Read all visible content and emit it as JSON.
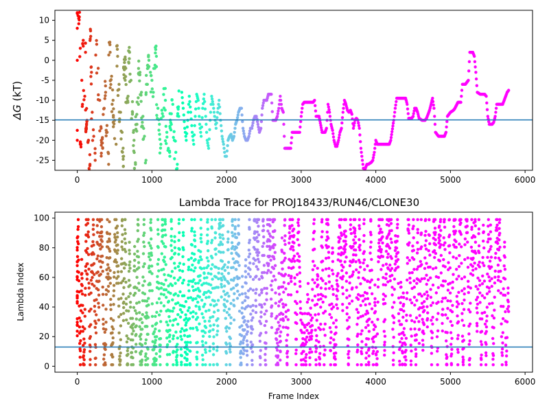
{
  "chart_data": [
    {
      "type": "scatter",
      "title": "",
      "xlabel": "",
      "ylabel": "ΔG (kT)",
      "xlim": [
        -300,
        6100
      ],
      "ylim": [
        -27.5,
        12.5
      ],
      "xticks": [
        0,
        1000,
        2000,
        3000,
        4000,
        5000,
        6000
      ],
      "yticks": [
        -25,
        -20,
        -15,
        -10,
        -5,
        0,
        5,
        10
      ],
      "grid": false,
      "hline": -14.9,
      "hline_color": "#1f77b4",
      "colormap": "rainbow (red at frame 0 → violet at high frames)",
      "trace": [
        [
          0,
          8
        ],
        [
          0,
          0
        ],
        [
          0,
          -17.5
        ],
        [
          0,
          -20
        ],
        [
          30,
          12
        ],
        [
          40,
          3
        ],
        [
          50,
          -21
        ],
        [
          60,
          -5
        ],
        [
          70,
          -11
        ],
        [
          80,
          5
        ],
        [
          100,
          -9
        ],
        [
          110,
          2
        ],
        [
          130,
          -15
        ],
        [
          150,
          -20
        ],
        [
          170,
          -26
        ],
        [
          180,
          6
        ],
        [
          190,
          -3
        ],
        [
          200,
          -13
        ],
        [
          220,
          -19
        ],
        [
          240,
          -25
        ],
        [
          260,
          4
        ],
        [
          280,
          -2
        ],
        [
          300,
          -10
        ],
        [
          320,
          -17
        ],
        [
          340,
          -22
        ],
        [
          360,
          -12
        ],
        [
          380,
          -8
        ],
        [
          400,
          -18
        ],
        [
          420,
          -26
        ],
        [
          440,
          2
        ],
        [
          460,
          -4
        ],
        [
          480,
          -10
        ],
        [
          500,
          -15
        ],
        [
          520,
          -21
        ],
        [
          540,
          1
        ],
        [
          560,
          -6
        ],
        [
          580,
          -13
        ],
        [
          600,
          -18
        ],
        [
          620,
          -24
        ],
        [
          650,
          -2
        ],
        [
          680,
          -9
        ],
        [
          700,
          2
        ],
        [
          720,
          -5
        ],
        [
          740,
          -13
        ],
        [
          760,
          -20
        ],
        [
          780,
          -26
        ],
        [
          800,
          -16
        ],
        [
          820,
          -11
        ],
        [
          840,
          -3
        ],
        [
          860,
          -8
        ],
        [
          880,
          -14
        ],
        [
          900,
          -19
        ],
        [
          920,
          -25
        ],
        [
          940,
          -6
        ],
        [
          960,
          0
        ],
        [
          980,
          -3
        ],
        [
          1000,
          -5
        ],
        [
          1020,
          -8
        ],
        [
          1040,
          -2
        ],
        [
          1060,
          1
        ],
        [
          1080,
          -12
        ],
        [
          1100,
          -16
        ],
        [
          1120,
          -21
        ],
        [
          1150,
          -14
        ],
        [
          1180,
          -10
        ],
        [
          1200,
          -18
        ],
        [
          1220,
          -22
        ],
        [
          1240,
          -24
        ],
        [
          1260,
          -16
        ],
        [
          1280,
          -11
        ],
        [
          1300,
          -20
        ],
        [
          1320,
          -23
        ],
        [
          1340,
          -26
        ],
        [
          1360,
          -14
        ],
        [
          1400,
          -8
        ],
        [
          1420,
          -12
        ],
        [
          1440,
          -17
        ],
        [
          1460,
          -20
        ],
        [
          1480,
          -15
        ],
        [
          1500,
          -9
        ],
        [
          1520,
          -13
        ],
        [
          1540,
          -18
        ],
        [
          1560,
          -21
        ],
        [
          1580,
          -14
        ],
        [
          1600,
          -8.5
        ],
        [
          1620,
          -10
        ],
        [
          1640,
          -16
        ],
        [
          1660,
          -19
        ],
        [
          1680,
          -12
        ],
        [
          1700,
          -8.5
        ],
        [
          1720,
          -14
        ],
        [
          1740,
          -20
        ],
        [
          1760,
          -22
        ],
        [
          1780,
          -15
        ],
        [
          1800,
          -9
        ],
        [
          1820,
          -11
        ],
        [
          1840,
          -14
        ],
        [
          1860,
          -17
        ],
        [
          1880,
          -13
        ],
        [
          1900,
          -10
        ],
        [
          1920,
          -15
        ],
        [
          1940,
          -19
        ],
        [
          1960,
          -21
        ],
        [
          1980,
          -24
        ],
        [
          2000,
          -24
        ],
        [
          2020,
          -20
        ],
        [
          2040,
          -19
        ],
        [
          2060,
          -18.5
        ],
        [
          2080,
          -20
        ],
        [
          2100,
          -19
        ],
        [
          2120,
          -16
        ],
        [
          2140,
          -15
        ],
        [
          2160,
          -13
        ],
        [
          2180,
          -12
        ],
        [
          2200,
          -12
        ],
        [
          2220,
          -17
        ],
        [
          2240,
          -19
        ],
        [
          2260,
          -20
        ],
        [
          2280,
          -20
        ],
        [
          2300,
          -19
        ],
        [
          2320,
          -17
        ],
        [
          2340,
          -17
        ],
        [
          2360,
          -15
        ],
        [
          2380,
          -14
        ],
        [
          2400,
          -14
        ],
        [
          2420,
          -16
        ],
        [
          2440,
          -18
        ],
        [
          2460,
          -17
        ],
        [
          2480,
          -12
        ],
        [
          2500,
          -10
        ],
        [
          2520,
          -10
        ],
        [
          2540,
          -10
        ],
        [
          2560,
          -8.5
        ],
        [
          2580,
          -8.5
        ],
        [
          2600,
          -8.5
        ],
        [
          2620,
          -15
        ],
        [
          2640,
          -15
        ],
        [
          2660,
          -15
        ],
        [
          2680,
          -14
        ],
        [
          2700,
          -12
        ],
        [
          2720,
          -9
        ],
        [
          2740,
          -12
        ],
        [
          2760,
          -13
        ],
        [
          2780,
          -22
        ],
        [
          2800,
          -22
        ],
        [
          2820,
          -22
        ],
        [
          2840,
          -22
        ],
        [
          2860,
          -22
        ],
        [
          2880,
          -18
        ],
        [
          2900,
          -18
        ],
        [
          2940,
          -18
        ],
        [
          2980,
          -18
        ],
        [
          3000,
          -14
        ],
        [
          3020,
          -11
        ],
        [
          3040,
          -10.5
        ],
        [
          3080,
          -10.5
        ],
        [
          3120,
          -10.5
        ],
        [
          3160,
          -10.5
        ],
        [
          3180,
          -10
        ],
        [
          3200,
          -14
        ],
        [
          3240,
          -14
        ],
        [
          3280,
          -18
        ],
        [
          3320,
          -18
        ],
        [
          3340,
          -17
        ],
        [
          3360,
          -11
        ],
        [
          3380,
          -13
        ],
        [
          3400,
          -16
        ],
        [
          3420,
          -17.5
        ],
        [
          3440,
          -20
        ],
        [
          3460,
          -21.5
        ],
        [
          3480,
          -21.5
        ],
        [
          3500,
          -20
        ],
        [
          3520,
          -18
        ],
        [
          3540,
          -17
        ],
        [
          3560,
          -13
        ],
        [
          3580,
          -10
        ],
        [
          3600,
          -11
        ],
        [
          3620,
          -12.5
        ],
        [
          3640,
          -13
        ],
        [
          3660,
          -12.5
        ],
        [
          3680,
          -13.5
        ],
        [
          3700,
          -17
        ],
        [
          3720,
          -15
        ],
        [
          3740,
          -14.5
        ],
        [
          3760,
          -15
        ],
        [
          3780,
          -17
        ],
        [
          3800,
          -22
        ],
        [
          3820,
          -25
        ],
        [
          3840,
          -28
        ],
        [
          3860,
          -27
        ],
        [
          3880,
          -26
        ],
        [
          3900,
          -26
        ],
        [
          3940,
          -25.5
        ],
        [
          3960,
          -25
        ],
        [
          3980,
          -23
        ],
        [
          4000,
          -20
        ],
        [
          4020,
          -21
        ],
        [
          4060,
          -21
        ],
        [
          4100,
          -21
        ],
        [
          4140,
          -21
        ],
        [
          4180,
          -21
        ],
        [
          4200,
          -20
        ],
        [
          4240,
          -15
        ],
        [
          4260,
          -12
        ],
        [
          4280,
          -9.5
        ],
        [
          4320,
          -9.5
        ],
        [
          4360,
          -9.5
        ],
        [
          4400,
          -9.5
        ],
        [
          4420,
          -11
        ],
        [
          4440,
          -14.5
        ],
        [
          4480,
          -14.5
        ],
        [
          4500,
          -14
        ],
        [
          4520,
          -12
        ],
        [
          4540,
          -12
        ],
        [
          4560,
          -13
        ],
        [
          4580,
          -14.5
        ],
        [
          4620,
          -15
        ],
        [
          4660,
          -15
        ],
        [
          4680,
          -14.5
        ],
        [
          4700,
          -13.5
        ],
        [
          4720,
          -12.5
        ],
        [
          4740,
          -11
        ],
        [
          4760,
          -9.5
        ],
        [
          4780,
          -12
        ],
        [
          4800,
          -18
        ],
        [
          4840,
          -19
        ],
        [
          4880,
          -19
        ],
        [
          4920,
          -19
        ],
        [
          4940,
          -18
        ],
        [
          4960,
          -14
        ],
        [
          5000,
          -13
        ],
        [
          5040,
          -12.5
        ],
        [
          5060,
          -12
        ],
        [
          5100,
          -10.5
        ],
        [
          5140,
          -10.5
        ],
        [
          5160,
          -6
        ],
        [
          5200,
          -6
        ],
        [
          5240,
          -5
        ],
        [
          5260,
          2
        ],
        [
          5300,
          2
        ],
        [
          5320,
          1
        ],
        [
          5340,
          -3
        ],
        [
          5360,
          -8
        ],
        [
          5400,
          -8.5
        ],
        [
          5440,
          -8.5
        ],
        [
          5460,
          -8.5
        ],
        [
          5480,
          -9
        ],
        [
          5500,
          -14
        ],
        [
          5520,
          -16
        ],
        [
          5560,
          -16
        ],
        [
          5580,
          -15.5
        ],
        [
          5600,
          -14
        ],
        [
          5620,
          -11
        ],
        [
          5660,
          -11
        ],
        [
          5700,
          -11
        ],
        [
          5720,
          -10
        ],
        [
          5740,
          -9
        ],
        [
          5760,
          -8
        ],
        [
          5780,
          -7.5
        ]
      ]
    },
    {
      "type": "scatter",
      "title": "Lambda Trace for PROJ18433/RUN46/CLONE30",
      "xlabel": "Frame Index",
      "ylabel": "Lambda Index",
      "xlim": [
        -300,
        6100
      ],
      "ylim": [
        -4,
        104
      ],
      "xticks": [
        0,
        1000,
        2000,
        3000,
        4000,
        5000,
        6000
      ],
      "yticks": [
        0,
        20,
        40,
        60,
        80,
        100
      ],
      "grid": false,
      "hline": 13,
      "hline_color": "#1f77b4",
      "colormap": "rainbow (red at frame 0 → violet at high frames)",
      "pattern": "dense vertical streaks of points spanning lambda 0–100 at each frame, sparser toward the end"
    }
  ]
}
